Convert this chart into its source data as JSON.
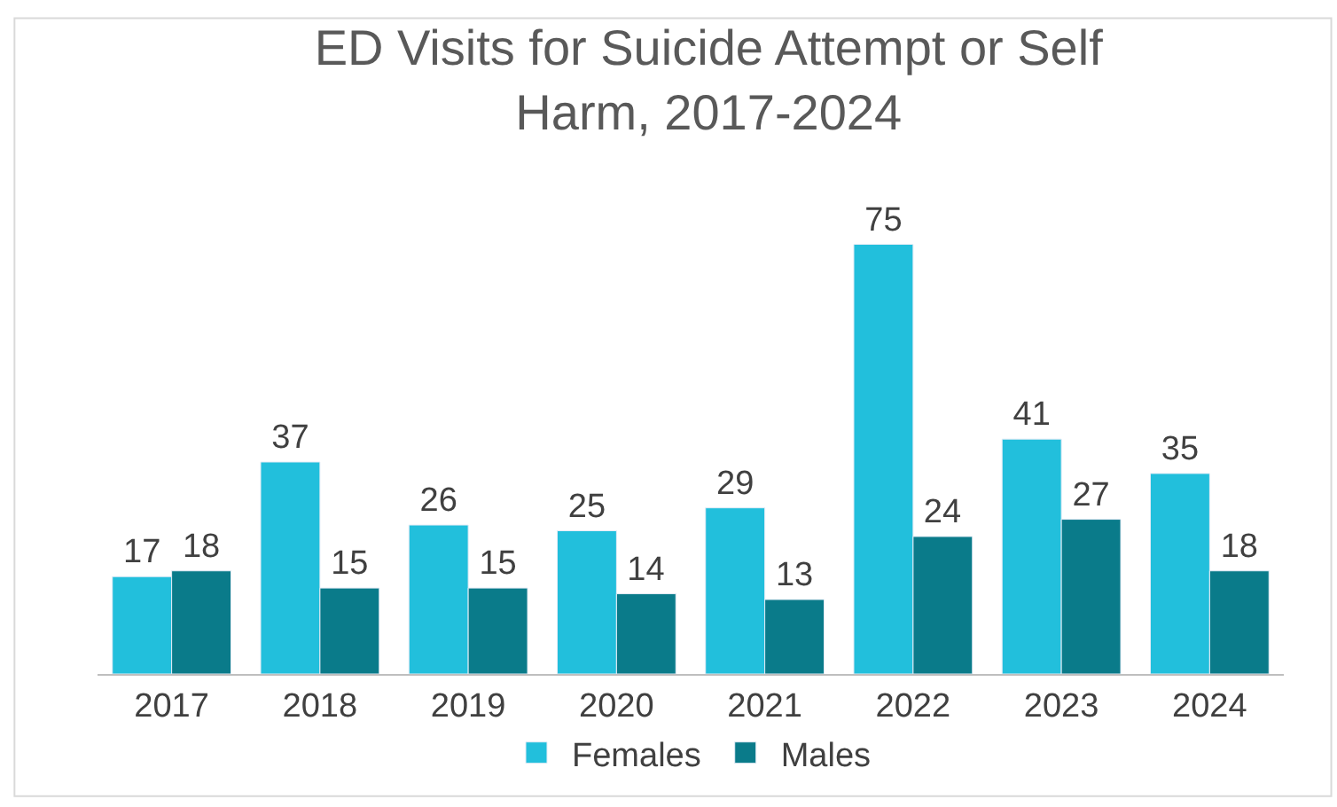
{
  "chart_data": {
    "type": "bar",
    "title": "ED Visits for Suicide Attempt or Self Harm, 2017-2024",
    "categories": [
      "2017",
      "2018",
      "2019",
      "2020",
      "2021",
      "2022",
      "2023",
      "2024"
    ],
    "series": [
      {
        "name": "Females",
        "color": "#22bfdc",
        "values": [
          17,
          37,
          26,
          25,
          29,
          75,
          41,
          35
        ]
      },
      {
        "name": "Males",
        "color": "#0a7b8a",
        "values": [
          18,
          15,
          15,
          14,
          13,
          24,
          27,
          18
        ]
      }
    ],
    "data_labels": true,
    "legend": "bottom",
    "tick_labels": "x"
  }
}
